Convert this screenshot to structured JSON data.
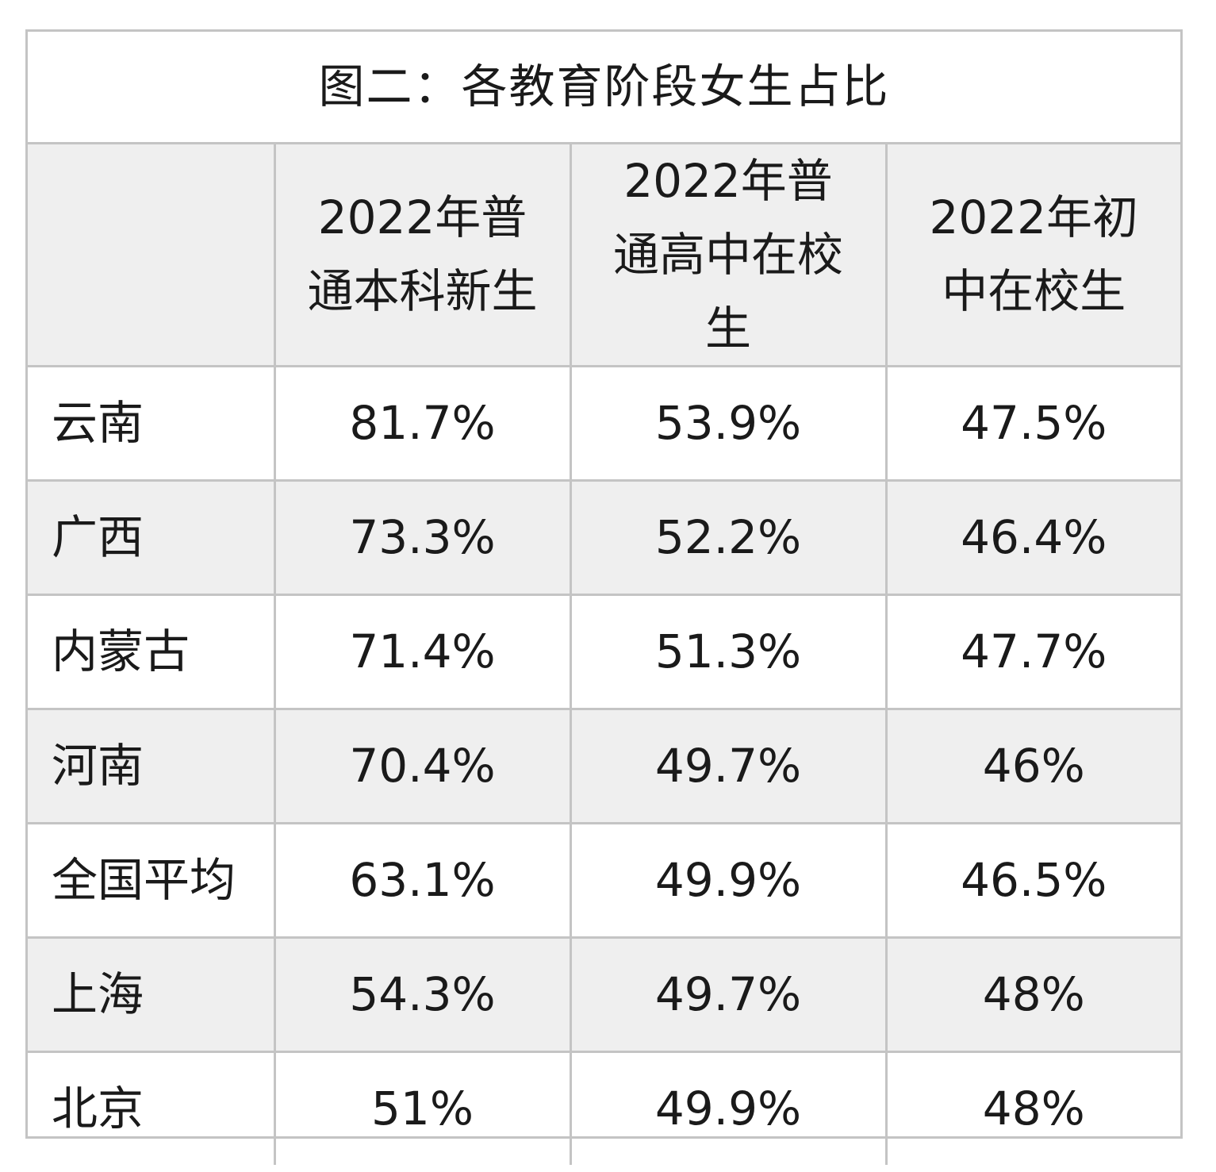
{
  "chart_data": {
    "type": "table",
    "title": "图二：各教育阶段女生占比",
    "columns": [
      "",
      "2022年普通本科新生",
      "2022年普通高中在校生",
      "2022年初中在校生"
    ],
    "rows": [
      {
        "region": "云南",
        "values": [
          "81.7%",
          "53.9%",
          "47.5%"
        ]
      },
      {
        "region": "广西",
        "values": [
          "73.3%",
          "52.2%",
          "46.4%"
        ]
      },
      {
        "region": "内蒙古",
        "values": [
          "71.4%",
          "51.3%",
          "47.7%"
        ]
      },
      {
        "region": "河南",
        "values": [
          "70.4%",
          "49.7%",
          "46%"
        ]
      },
      {
        "region": "全国平均",
        "values": [
          "63.1%",
          "49.9%",
          "46.5%"
        ]
      },
      {
        "region": "上海",
        "values": [
          "54.3%",
          "49.7%",
          "48%"
        ]
      },
      {
        "region": "北京",
        "values": [
          "51%",
          "49.9%",
          "48%"
        ]
      }
    ]
  }
}
